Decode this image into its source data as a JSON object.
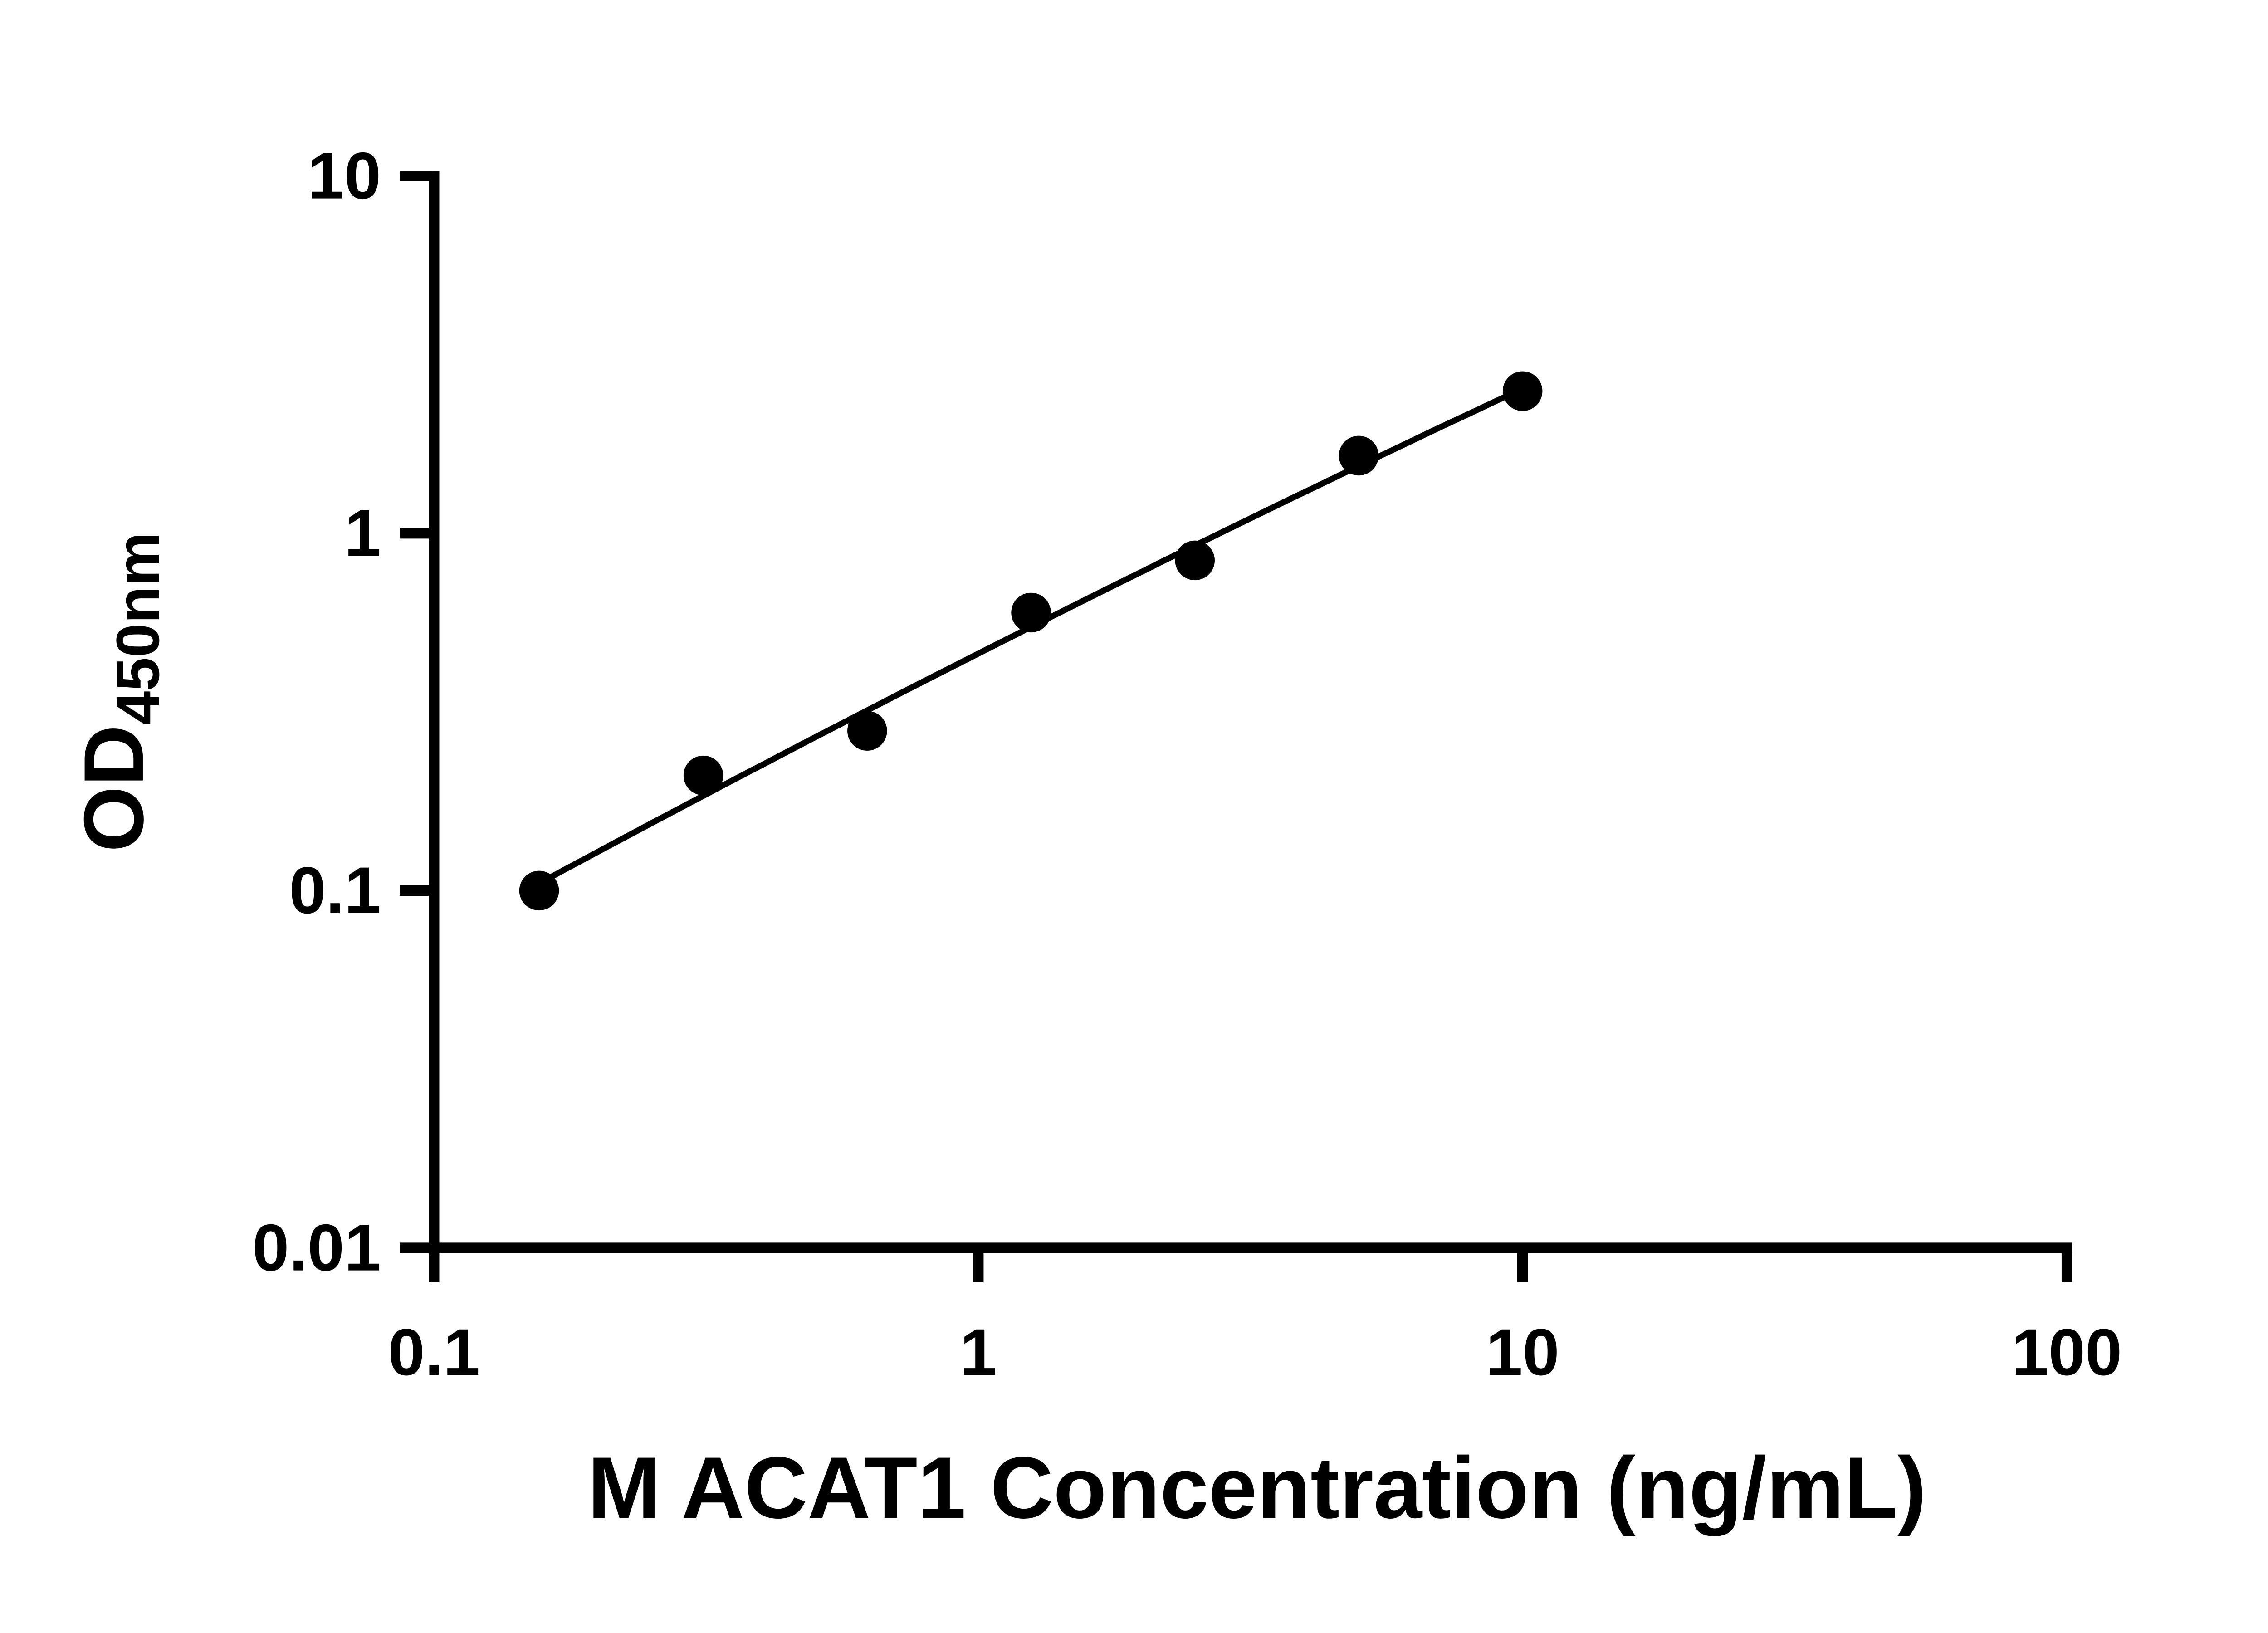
{
  "chart_data": {
    "type": "scatter",
    "x": [
      0.156,
      0.3125,
      0.625,
      1.25,
      2.5,
      5,
      10
    ],
    "y": [
      0.1,
      0.21,
      0.28,
      0.6,
      0.84,
      1.65,
      2.5
    ],
    "xlabel": "M ACAT1 Concentration (ng/mL)",
    "ylabel": "OD450nm",
    "ylabel_parts": {
      "main": "OD",
      "subscript": "450nm"
    },
    "x_scale": "log",
    "y_scale": "log",
    "xlim": [
      0.1,
      100
    ],
    "ylim": [
      0.01,
      10
    ],
    "x_ticks": [
      "0.1",
      "1",
      "10",
      "100"
    ],
    "y_ticks": [
      "0.01",
      "0.1",
      "1",
      "10"
    ],
    "grid": false,
    "legend": false,
    "fit_line": true,
    "marker": {
      "shape": "circle",
      "color": "#000000"
    },
    "line": {
      "color": "#000000",
      "style": "solid"
    },
    "axis_color": "#000000",
    "background_color": "#ffffff"
  }
}
